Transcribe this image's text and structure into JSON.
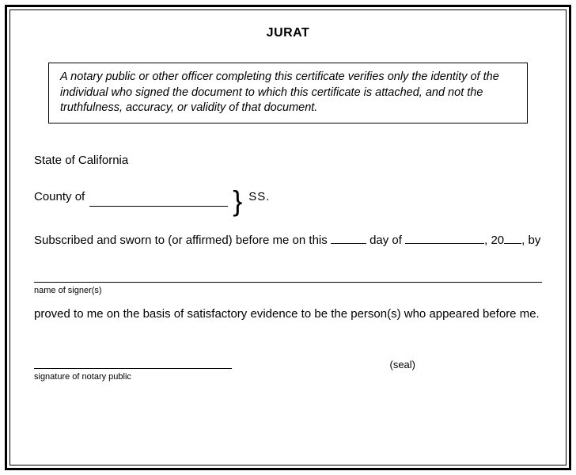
{
  "title": "JURAT",
  "notice": "A notary public or other officer completing this certificate verifies only the identity of the individual who signed the document to which this certificate is attached, and not the truthfulness, accuracy, or validity of that document.",
  "state_label": "State of California",
  "county_label": "County of",
  "ss_label": "SS.",
  "sworn_prefix": "Subscribed and sworn to (or affirmed) before me on this ",
  "day_of": " day of ",
  "year_prefix": ", 20",
  "by_suffix": ", by",
  "signer_caption": "name of signer(s)",
  "proved_text": "proved to me on the basis of satisfactory evidence to be the person(s) who appeared before me.",
  "seal_label": "(seal)",
  "signature_caption": "signature of notary public",
  "colors": {
    "text": "#000000",
    "border": "#000000",
    "background": "#ffffff"
  },
  "fonts": {
    "family": "Arial",
    "title_size": 16,
    "body_size": 15,
    "caption_size": 11,
    "notice_size": 14.5
  }
}
